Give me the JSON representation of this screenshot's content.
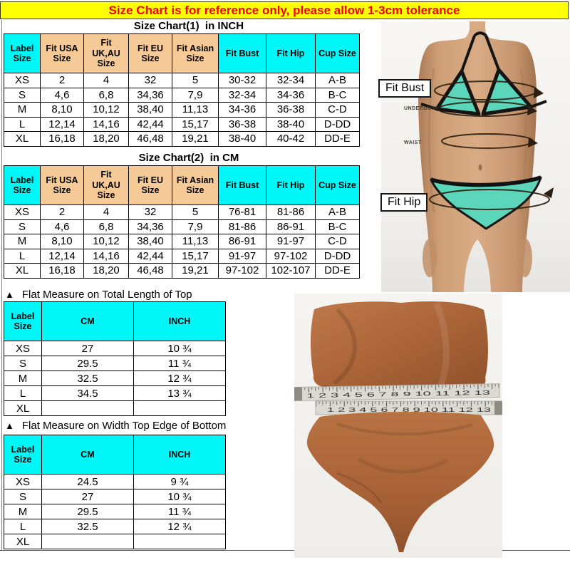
{
  "banner": {
    "text": "Size Chart is for reference only, please allow 1-3cm tolerance",
    "bg_color": "#ffff00",
    "text_color": "#f40000"
  },
  "charts": {
    "inch": {
      "title": "Size Chart(1)  in INCH",
      "headers": [
        "Label\nSize",
        "Fit USA\nSize",
        "Fit\nUK,AU\nSize",
        "Fit EU\nSize",
        "Fit Asian\nSize",
        "Fit Bust",
        "Fit Hip",
        "Cup Size"
      ],
      "header_colors": [
        "cyan",
        "tan",
        "tan",
        "tan",
        "tan",
        "cyan",
        "cyan",
        "cyan"
      ],
      "rows": [
        [
          "XS",
          "2",
          "4",
          "32",
          "5",
          "30-32",
          "32-34",
          "A-B"
        ],
        [
          "S",
          "4,6",
          "6,8",
          "34,36",
          "7,9",
          "32-34",
          "34-36",
          "B-C"
        ],
        [
          "M",
          "8,10",
          "10,12",
          "38,40",
          "11,13",
          "34-36",
          "36-38",
          "C-D"
        ],
        [
          "L",
          "12,14",
          "14,16",
          "42,44",
          "15,17",
          "36-38",
          "38-40",
          "D-DD"
        ],
        [
          "XL",
          "16,18",
          "18,20",
          "46,48",
          "19,21",
          "38-40",
          "40-42",
          "DD-E"
        ]
      ]
    },
    "cm": {
      "title": "Size Chart(2)  in CM",
      "headers": [
        "Label\nSize",
        "Fit USA\nSize",
        "Fit\nUK,AU\nSize",
        "Fit EU\nSize",
        "Fit Asian\nSize",
        "Fit Bust",
        "Fit Hip",
        "Cup Size"
      ],
      "header_colors": [
        "cyan",
        "tan",
        "tan",
        "tan",
        "tan",
        "cyan",
        "cyan",
        "cyan"
      ],
      "rows": [
        [
          "XS",
          "2",
          "4",
          "32",
          "5",
          "76-81",
          "81-86",
          "A-B"
        ],
        [
          "S",
          "4,6",
          "6,8",
          "34,36",
          "7,9",
          "81-86",
          "86-91",
          "B-C"
        ],
        [
          "M",
          "8,10",
          "10,12",
          "38,40",
          "11,13",
          "86-91",
          "91-97",
          "C-D"
        ],
        [
          "L",
          "12,14",
          "14,16",
          "42,44",
          "15,17",
          "91-97",
          "97-102",
          "D-DD"
        ],
        [
          "XL",
          "16,18",
          "18,20",
          "46,48",
          "19,21",
          "97-102",
          "102-107",
          "DD-E"
        ]
      ]
    },
    "top_length": {
      "marker": "▲",
      "heading": "Flat Measure on Total Length of Top",
      "headers": [
        "Label\nSize",
        "CM",
        "INCH"
      ],
      "header_colors": [
        "cyan",
        "cyan",
        "cyan"
      ],
      "rows": [
        [
          "XS",
          "27",
          "10 ¾"
        ],
        [
          "S",
          "29.5",
          "11 ¾"
        ],
        [
          "M",
          "32.5",
          "12 ¾"
        ],
        [
          "L",
          "34.5",
          "13 ¾"
        ],
        [
          "XL",
          "",
          ""
        ]
      ]
    },
    "bottom_width": {
      "marker": "▲",
      "heading": "Flat Measure on Width Top Edge of Bottom",
      "headers": [
        "Label\nSize",
        "CM",
        "INCH"
      ],
      "header_colors": [
        "cyan",
        "cyan",
        "cyan"
      ],
      "rows": [
        [
          "XS",
          "24.5",
          "9 ¾"
        ],
        [
          "S",
          "27",
          "10 ¾"
        ],
        [
          "M",
          "29.5",
          "11 ¾"
        ],
        [
          "L",
          "32.5",
          "12 ¾"
        ],
        [
          "XL",
          "",
          ""
        ]
      ]
    }
  },
  "model_photo": {
    "bust_label": "Fit Bust",
    "underbust_label": "UNDERBUST",
    "waist_label": "WAIST",
    "hip_label": "Fit Hip",
    "bikini_color": "#5cd6ba"
  },
  "product_photo": {
    "tape1_numbers": "1 2 3 4 5 6 7 8 9 10 11 12 13",
    "tape2_numbers": "1 2 3 4 5 6 7 8 9 10 11 12 13",
    "garment_color": "#a96237"
  }
}
